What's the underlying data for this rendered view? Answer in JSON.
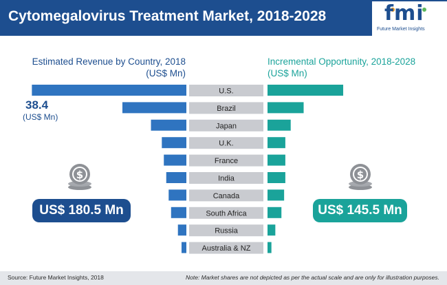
{
  "header": {
    "title": "Cytomegalovirus Treatment Market, 2018-2028"
  },
  "logo": {
    "mark": "fmi",
    "tagline": "Future Market Insights"
  },
  "panels": {
    "left_title_line1": "Estimated Revenue by Country, 2018",
    "left_title_line2": "(US$ Mn)",
    "right_title_line1": "Incremental Opportunity, 2018-2028",
    "right_title_line2": "(US$ Mn)"
  },
  "callout": {
    "value": "38.4",
    "unit": "(US$ Mn)"
  },
  "totals": {
    "left": "US$ 180.5 Mn",
    "right": "US$ 145.5 Mn"
  },
  "footer": {
    "source": "Source: Future Market Insights, 2018",
    "note": "Note: Market shares are not depicted as per the actual scale and are only for illustration purposes."
  },
  "colors": {
    "header": "#1d4e8f",
    "left_bars": "#2f74c0",
    "right_bars": "#1aa39a",
    "label_box": "#c9cbd0",
    "pill_left": "#1d4e8f",
    "pill_right": "#1aa39a",
    "coin": "#8e9196"
  },
  "icons": {
    "coin": "dollar-coin-stack-icon"
  },
  "chart_data": {
    "type": "bar",
    "categories": [
      "U.S.",
      "Brazil",
      "Japan",
      "U.K.",
      "France",
      "India",
      "Canada",
      "South Africa",
      "Russia",
      "Australia & NZ"
    ],
    "series": [
      {
        "values": [
          38.4,
          15.9,
          8.8,
          6.1,
          5.6,
          5.0,
          4.4,
          3.8,
          2.1,
          1.2
        ]
      },
      {
        "values": [
          31.0,
          14.8,
          9.5,
          7.3,
          7.3,
          7.3,
          6.8,
          5.7,
          3.2,
          1.6
        ]
      }
    ],
    "left_xlim": [
      0,
      40.0
    ],
    "right_xlim": [
      0,
      40.0
    ]
  }
}
